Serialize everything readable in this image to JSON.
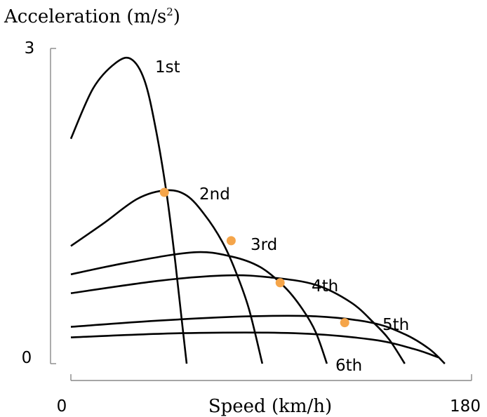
{
  "chart_data": {
    "type": "line",
    "ylabel": "Acceleration (m/s",
    "ylabel_sup": "2",
    "ylabel_close": ")",
    "xlabel": "Speed (km/h)",
    "xlim": [
      0,
      180
    ],
    "ylim": [
      0,
      3
    ],
    "x_ticks": [
      "0",
      "180"
    ],
    "y_ticks": [
      "3",
      "0"
    ],
    "grid": false,
    "legend": "none",
    "colors": {
      "curve": "#000000",
      "shift_point": "#f5a54a",
      "axis": "#888888"
    },
    "series": [
      {
        "name": "1st",
        "points": [
          [
            0,
            2.14
          ],
          [
            10,
            2.62
          ],
          [
            20,
            2.86
          ],
          [
            27,
            2.9
          ],
          [
            33,
            2.7
          ],
          [
            38,
            2.25
          ],
          [
            43,
            1.62
          ],
          [
            47,
            0.95
          ],
          [
            50,
            0.38
          ],
          [
            52,
            0.0
          ]
        ]
      },
      {
        "name": "2nd",
        "points": [
          [
            0,
            1.12
          ],
          [
            15,
            1.34
          ],
          [
            30,
            1.57
          ],
          [
            43,
            1.65
          ],
          [
            52,
            1.6
          ],
          [
            60,
            1.42
          ],
          [
            68,
            1.16
          ],
          [
            74,
            0.88
          ],
          [
            80,
            0.52
          ],
          [
            86,
            0.0
          ]
        ]
      },
      {
        "name": "3rd",
        "points": [
          [
            0,
            0.85
          ],
          [
            25,
            0.96
          ],
          [
            55,
            1.06
          ],
          [
            72,
            1.02
          ],
          [
            85,
            0.92
          ],
          [
            96,
            0.73
          ],
          [
            104,
            0.52
          ],
          [
            110,
            0.3
          ],
          [
            115,
            0.0
          ]
        ]
      },
      {
        "name": "4th",
        "points": [
          [
            0,
            0.67
          ],
          [
            40,
            0.79
          ],
          [
            70,
            0.84
          ],
          [
            90,
            0.82
          ],
          [
            110,
            0.75
          ],
          [
            126,
            0.58
          ],
          [
            136,
            0.39
          ],
          [
            143,
            0.23
          ],
          [
            150,
            0.0
          ]
        ]
      },
      {
        "name": "5th",
        "points": [
          [
            0,
            0.35
          ],
          [
            40,
            0.41
          ],
          [
            80,
            0.45
          ],
          [
            110,
            0.45
          ],
          [
            135,
            0.39
          ],
          [
            150,
            0.28
          ],
          [
            161,
            0.14
          ],
          [
            168,
            0.0
          ]
        ]
      },
      {
        "name": "6th",
        "points": [
          [
            0,
            0.25
          ],
          [
            50,
            0.29
          ],
          [
            100,
            0.29
          ],
          [
            135,
            0.23
          ],
          [
            154,
            0.14
          ],
          [
            165,
            0.06
          ]
        ]
      }
    ],
    "shift_points": [
      [
        42,
        1.63
      ],
      [
        72,
        1.17
      ],
      [
        94,
        0.77
      ],
      [
        123,
        0.39
      ]
    ]
  }
}
